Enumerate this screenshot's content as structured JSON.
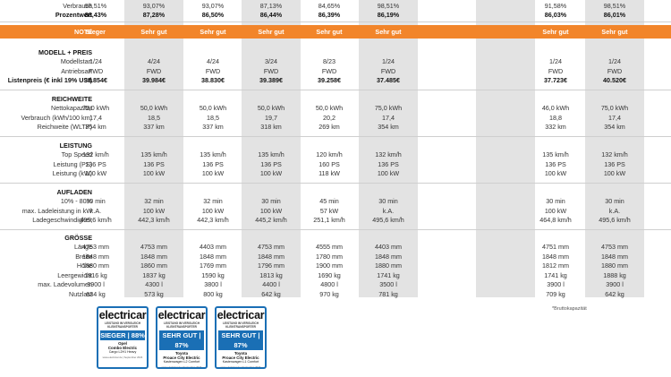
{
  "top_rows": [
    {
      "label": "Verbrauch",
      "bold": false,
      "values": [
        "98,51%",
        "93,07%",
        "93,07%",
        "87,13%",
        "84,65%",
        "98,51%",
        "",
        "",
        "91,58%",
        "98,51%"
      ]
    },
    {
      "label": "Prozentwert",
      "bold": true,
      "values": [
        "88,43%",
        "87,28%",
        "86,50%",
        "86,44%",
        "86,39%",
        "86,19%",
        "",
        "",
        "86,03%",
        "86,01%"
      ]
    }
  ],
  "note_row": {
    "label": "NOTE",
    "values": [
      "Sieger",
      "Sehr gut",
      "Sehr gut",
      "Sehr gut",
      "Sehr gut",
      "Sehr gut",
      "",
      "",
      "Sehr gut",
      "Sehr gut"
    ]
  },
  "sections": [
    {
      "title": "MODELL + PREIS",
      "rows": [
        {
          "label": "Modellstart",
          "bold": false,
          "values": [
            "1/24",
            "4/24",
            "4/24",
            "3/24",
            "8/23",
            "1/24",
            "",
            "",
            "1/24",
            "1/24"
          ]
        },
        {
          "label": "Antriebsart",
          "bold": false,
          "values": [
            "FWD",
            "FWD",
            "FWD",
            "FWD",
            "FWD",
            "FWD",
            "",
            "",
            "FWD",
            "FWD"
          ]
        },
        {
          "label": "Listenpreis (€ inkl 19% USt)",
          "bold": true,
          "values": [
            "38.854€",
            "39.984€",
            "38.830€",
            "39.389€",
            "39.258€",
            "37.485€",
            "",
            "",
            "37.723€",
            "40.520€"
          ]
        }
      ]
    },
    {
      "title": "REICHWEITE",
      "rows": [
        {
          "label": "Nettokapazität",
          "bold": false,
          "values": [
            "75,0 kWh",
            "50,0 kWh",
            "50,0 kWh",
            "50,0 kWh",
            "50,0 kWh",
            "75,0 kWh",
            "",
            "",
            "46,0 kWh",
            "75,0 kWh"
          ]
        },
        {
          "label": "Verbrauch (kWh/100 km)",
          "bold": false,
          "values": [
            "17,4",
            "18,5",
            "18,5",
            "19,7",
            "20,2",
            "17,4",
            "",
            "",
            "18,8",
            "17,4"
          ]
        },
        {
          "label": "Reichweite (WLTP)",
          "bold": false,
          "values": [
            "354 km",
            "337 km",
            "337 km",
            "318 km",
            "269 km",
            "354 km",
            "",
            "",
            "332 km",
            "354 km"
          ]
        }
      ]
    },
    {
      "title": "LEISTUNG",
      "rows": [
        {
          "label": "Top Speed",
          "bold": false,
          "values": [
            "132 km/h",
            "135 km/h",
            "135 km/h",
            "135 km/h",
            "120 km/h",
            "132 km/h",
            "",
            "",
            "135 km/h",
            "132 km/h"
          ]
        },
        {
          "label": "Leistung (PS)",
          "bold": false,
          "values": [
            "136 PS",
            "136 PS",
            "136 PS",
            "136 PS",
            "160 PS",
            "136 PS",
            "",
            "",
            "136 PS",
            "136 PS"
          ]
        },
        {
          "label": "Leistung (kW)",
          "bold": false,
          "values": [
            "100 kW",
            "100 kW",
            "100 kW",
            "100 kW",
            "118 kW",
            "100 kW",
            "",
            "",
            "100 kW",
            "100 kW"
          ]
        }
      ]
    },
    {
      "title": "AUFLADEN",
      "rows": [
        {
          "label": "10% - 80%",
          "bold": false,
          "values": [
            "30 min",
            "32 min",
            "32 min",
            "30 min",
            "45 min",
            "30 min",
            "",
            "",
            "30 min",
            "30 min"
          ]
        },
        {
          "label": "max. Ladeleistung in kW",
          "bold": false,
          "values": [
            "k.A.",
            "100 kW",
            "100 kW",
            "100 kW",
            "57 kW",
            "k.A.",
            "",
            "",
            "100 kW",
            "k.A."
          ]
        },
        {
          "label": "Ladegeschwindigkeit",
          "bold": false,
          "values": [
            "495,6 km/h",
            "442,3 km/h",
            "442,3 km/h",
            "445,2 km/h",
            "251,1 km/h",
            "495,6 km/h",
            "",
            "",
            "464,8 km/h",
            "495,6 km/h"
          ]
        }
      ]
    },
    {
      "title": "GRÖSSE",
      "rows": [
        {
          "label": "Länge",
          "bold": false,
          "values": [
            "4753 mm",
            "4753 mm",
            "4403 mm",
            "4753 mm",
            "4555 mm",
            "4403 mm",
            "",
            "",
            "4751 mm",
            "4753 mm"
          ]
        },
        {
          "label": "Breite",
          "bold": false,
          "values": [
            "1848 mm",
            "1848 mm",
            "1848 mm",
            "1848 mm",
            "1780 mm",
            "1848 mm",
            "",
            "",
            "1848 mm",
            "1848 mm"
          ]
        },
        {
          "label": "Höhe",
          "bold": false,
          "values": [
            "1880 mm",
            "1860 mm",
            "1769 mm",
            "1796 mm",
            "1900 mm",
            "1880 mm",
            "",
            "",
            "1812 mm",
            "1880 mm"
          ]
        },
        {
          "label": "Leergewicht",
          "bold": false,
          "values": [
            "1816 kg",
            "1837 kg",
            "1590 kg",
            "1813 kg",
            "1690 kg",
            "1741 kg",
            "",
            "",
            "1741 kg",
            "1888 kg"
          ]
        },
        {
          "label": "max. Ladevolumen",
          "bold": false,
          "values": [
            "3900 l",
            "4300 l",
            "3800 l",
            "4400 l",
            "4800 l",
            "3500 l",
            "",
            "",
            "3900 l",
            "3900 l"
          ]
        },
        {
          "label": "Nutzlast",
          "bold": false,
          "values": [
            "634 kg",
            "573 kg",
            "800 kg",
            "642 kg",
            "970 kg",
            "781 kg",
            "",
            "",
            "709 kg",
            "642 kg"
          ]
        }
      ]
    }
  ],
  "footnote": "*Bruttokapazität",
  "badges": [
    {
      "logo": "electricar",
      "sub1": "LEISTUNG IM VERGLEICH",
      "sub2": "KLEINTRANSPORTER",
      "rating": "SIEGER | 88%",
      "car1": "Opel",
      "car2": "Combo Electric",
      "car3": "Cargo L2H1 Heavy",
      "footer": "www.electricar.de | September 2024",
      "accent": "#1a6fb5"
    },
    {
      "logo": "electricar",
      "sub1": "LEISTUNG IM VERGLEICH",
      "sub2": "KLEINTRANSPORTER",
      "rating": "SEHR GUT | 87%",
      "car1": "Toyota",
      "car2": "Proace City Electric",
      "car3": "Kastenwagen L2 Comfort",
      "footer": "www.electricar.de | September 2024",
      "accent": "#1a6fb5"
    },
    {
      "logo": "electricar",
      "sub1": "LEISTUNG IM VERGLEICH",
      "sub2": "KLEINTRANSPORTER",
      "rating": "SEHR GUT | 87%",
      "car1": "Toyota",
      "car2": "Proace City Electric",
      "car3": "Kastenwagen L1 Comfort",
      "footer": "www.electricar.de | September 2024",
      "accent": "#1a6fb5"
    }
  ],
  "colors": {
    "accent_orange": "#f2852a",
    "column_shade": "#e3e3e3",
    "badge_blue": "#1a6fb5"
  }
}
